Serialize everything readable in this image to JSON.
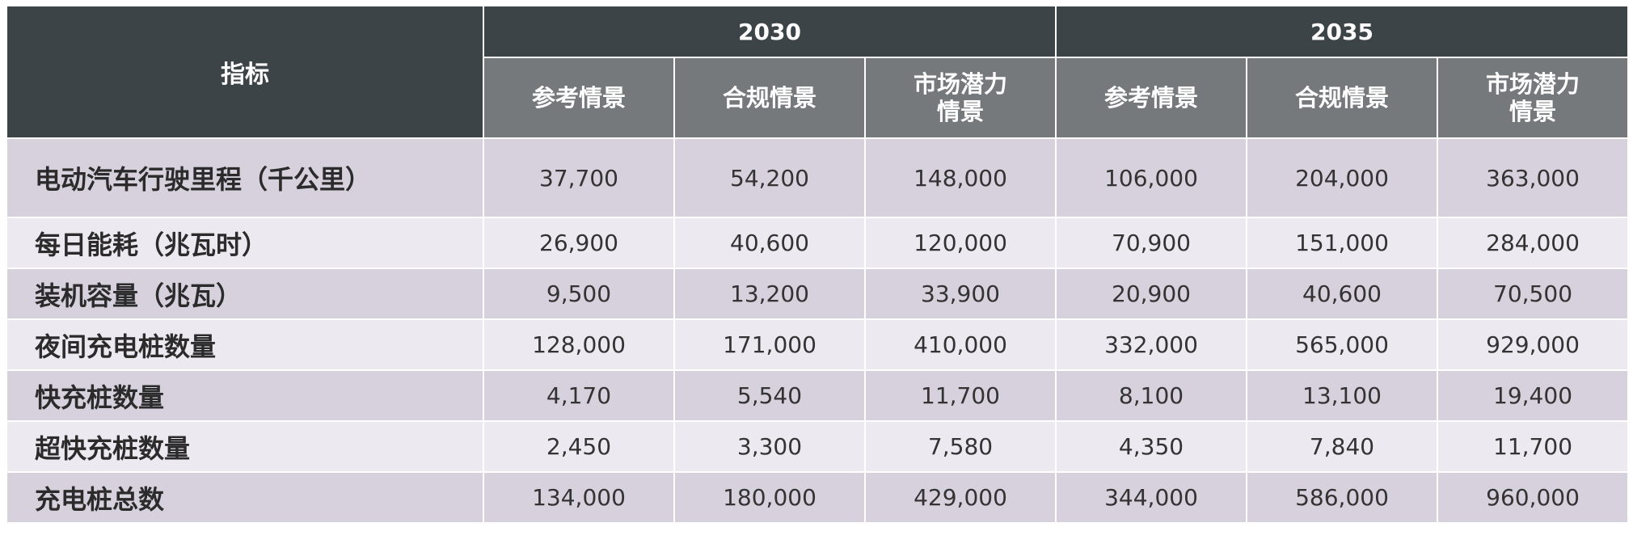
{
  "chart_data": {
    "type": "table",
    "header": {
      "indicator": "指标",
      "years": [
        "2030",
        "2035"
      ],
      "scenarios": [
        "参考情景",
        "合规情景",
        "市场潜力\n情景"
      ]
    },
    "rows": [
      {
        "label": "电动汽车行驶里程（千公里）",
        "values": [
          "37,700",
          "54,200",
          "148,000",
          "106,000",
          "204,000",
          "363,000"
        ]
      },
      {
        "label": "每日能耗（兆瓦时）",
        "values": [
          "26,900",
          "40,600",
          "120,000",
          "70,900",
          "151,000",
          "284,000"
        ]
      },
      {
        "label": "装机容量（兆瓦）",
        "values": [
          "9,500",
          "13,200",
          "33,900",
          "20,900",
          "40,600",
          "70,500"
        ]
      },
      {
        "label": "夜间充电桩数量",
        "values": [
          "128,000",
          "171,000",
          "410,000",
          "332,000",
          "565,000",
          "929,000"
        ]
      },
      {
        "label": "快充桩数量",
        "values": [
          "4,170",
          "5,540",
          "11,700",
          "8,100",
          "13,100",
          "19,400"
        ]
      },
      {
        "label": "超快充桩数量",
        "values": [
          "2,450",
          "3,300",
          "7,580",
          "4,350",
          "7,840",
          "11,700"
        ]
      },
      {
        "label": "充电桩总数",
        "values": [
          "134,000",
          "180,000",
          "429,000",
          "344,000",
          "586,000",
          "960,000"
        ]
      }
    ]
  },
  "colors": {
    "header_dark": "#3d4448",
    "header_sub": "#76797c",
    "row_odd": "#d6d1dd",
    "row_even": "#ede9f0"
  }
}
